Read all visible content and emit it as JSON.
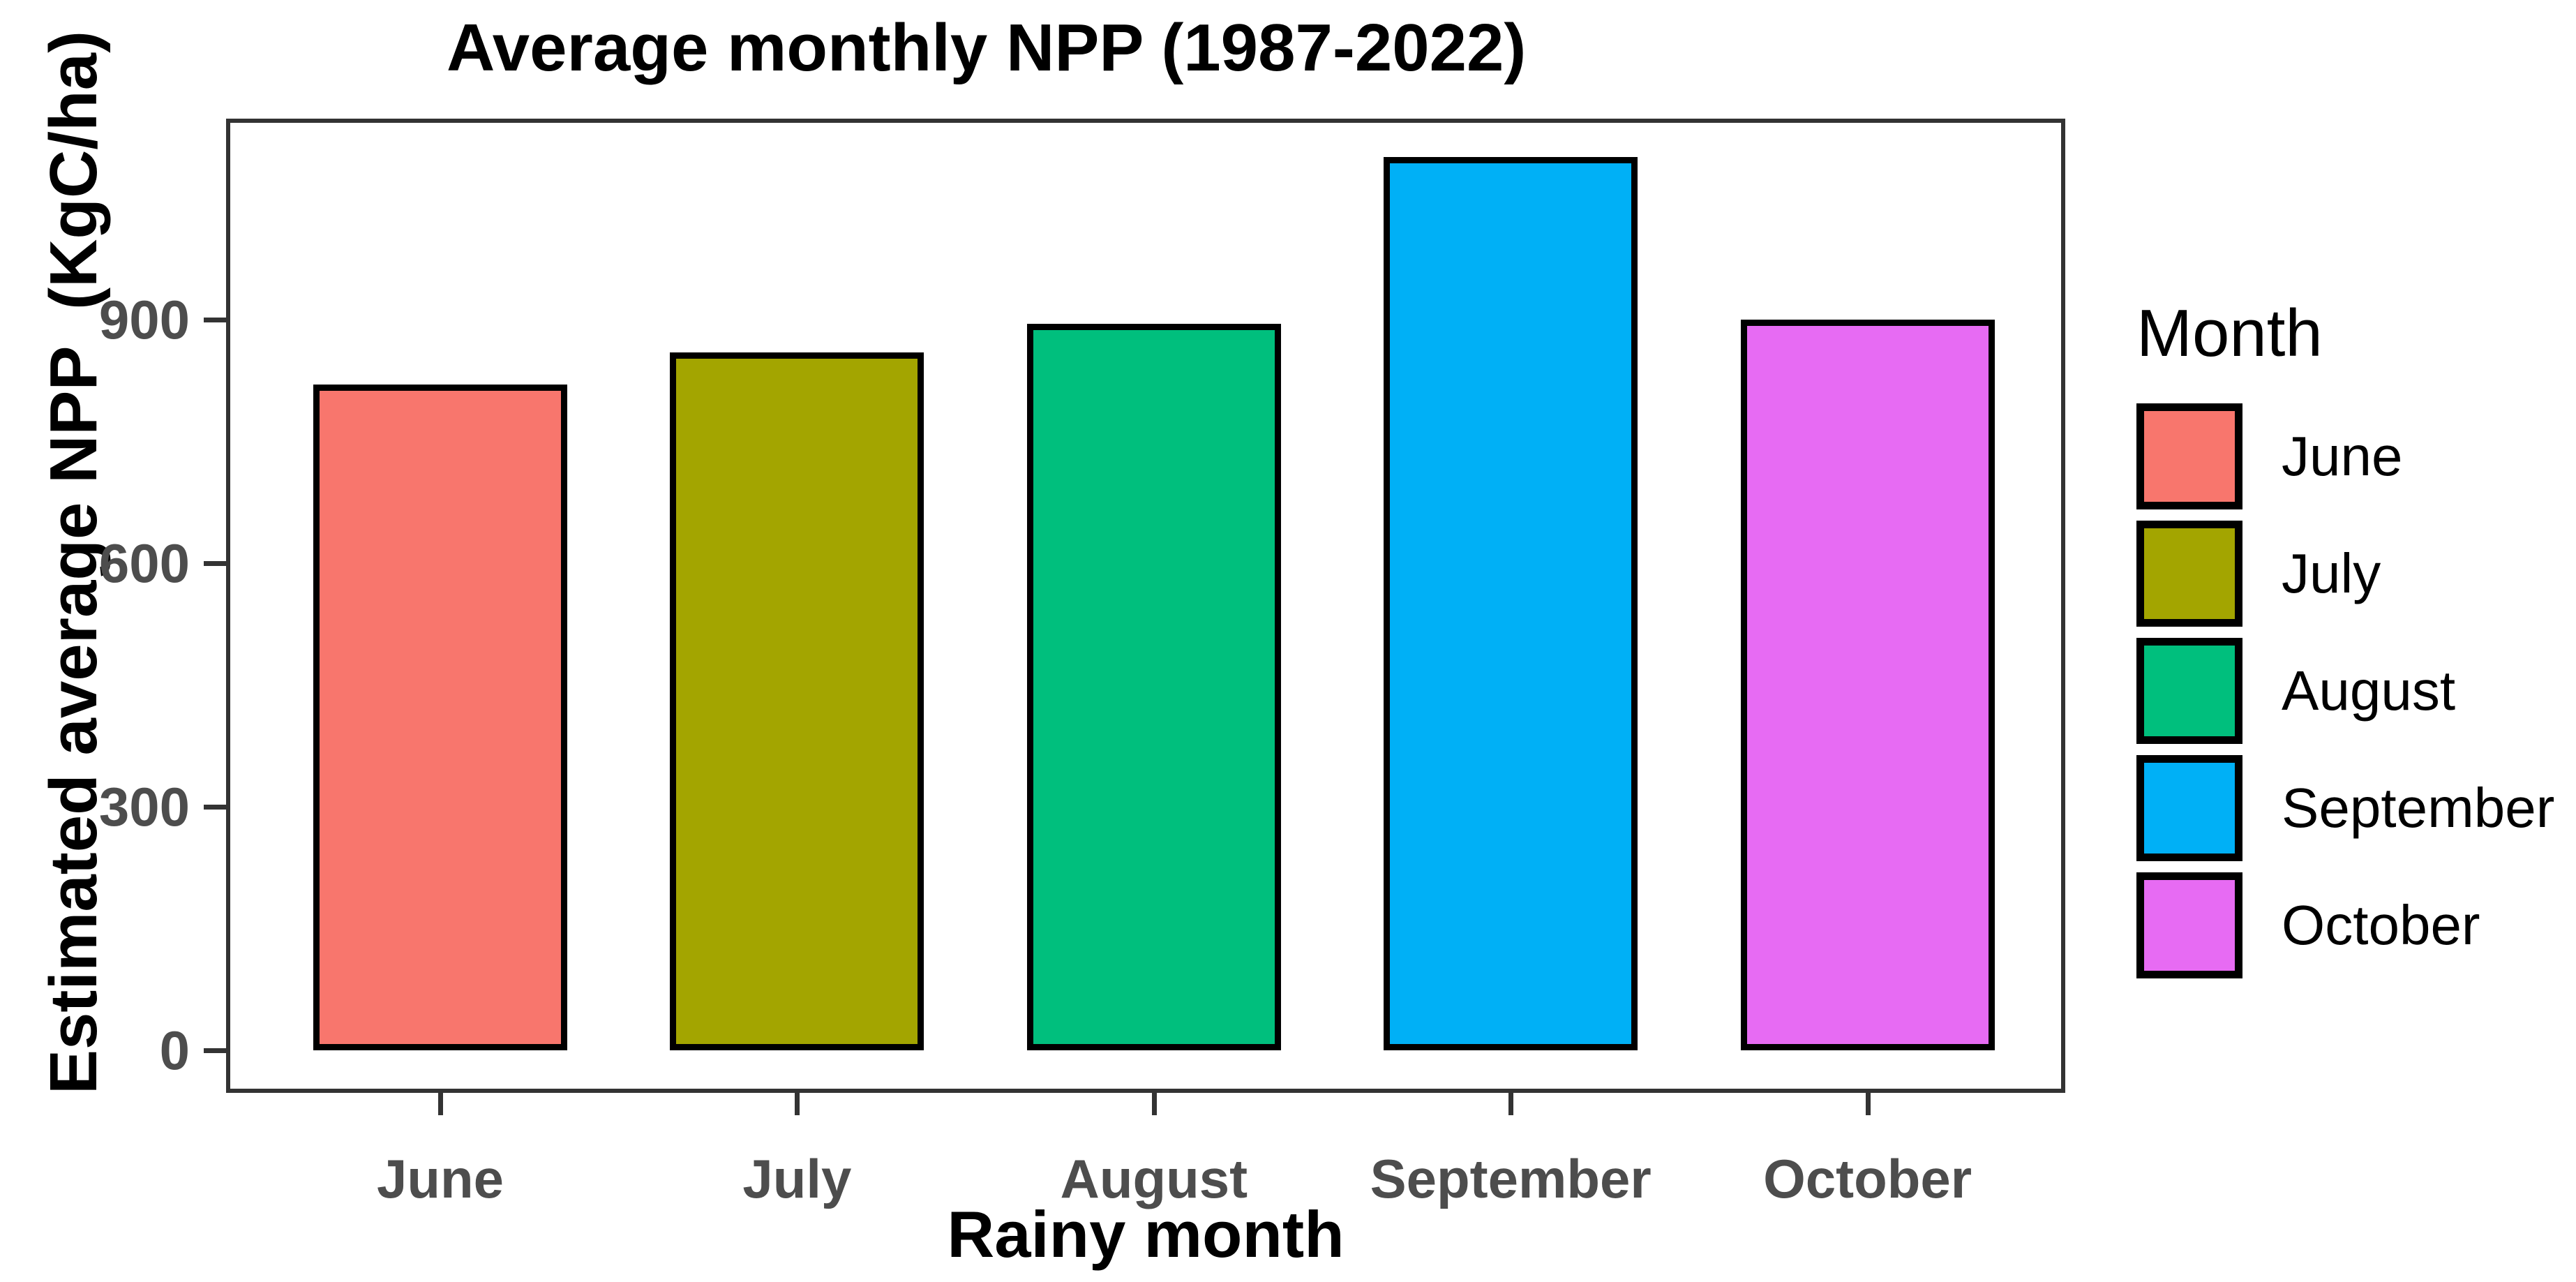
{
  "chart_data": {
    "type": "bar",
    "title": "Average monthly NPP (1987-2022)",
    "xlabel": "Rainy month",
    "ylabel": "Estimated average NPP  (KgC/ha)",
    "categories": [
      "June",
      "July",
      "August",
      "September",
      "October"
    ],
    "values": [
      820,
      860,
      895,
      1100,
      900
    ],
    "bar_colors": [
      "#F8766D",
      "#A3A500",
      "#00BF7D",
      "#00B0F6",
      "#E76BF3"
    ],
    "bar_border_color": "#000000",
    "yticks": [
      0,
      300,
      600,
      900
    ],
    "ylim": [
      0,
      1150
    ],
    "grid": false,
    "panel_border_color": "#333333",
    "tick_label_color": "#4D4D4D",
    "legend": {
      "title": "Month",
      "position": "right",
      "entries": [
        {
          "label": "June",
          "color": "#F8766D"
        },
        {
          "label": "July",
          "color": "#A3A500"
        },
        {
          "label": "August",
          "color": "#00BF7D"
        },
        {
          "label": "September",
          "color": "#00B0F6"
        },
        {
          "label": "October",
          "color": "#E76BF3"
        }
      ]
    }
  }
}
